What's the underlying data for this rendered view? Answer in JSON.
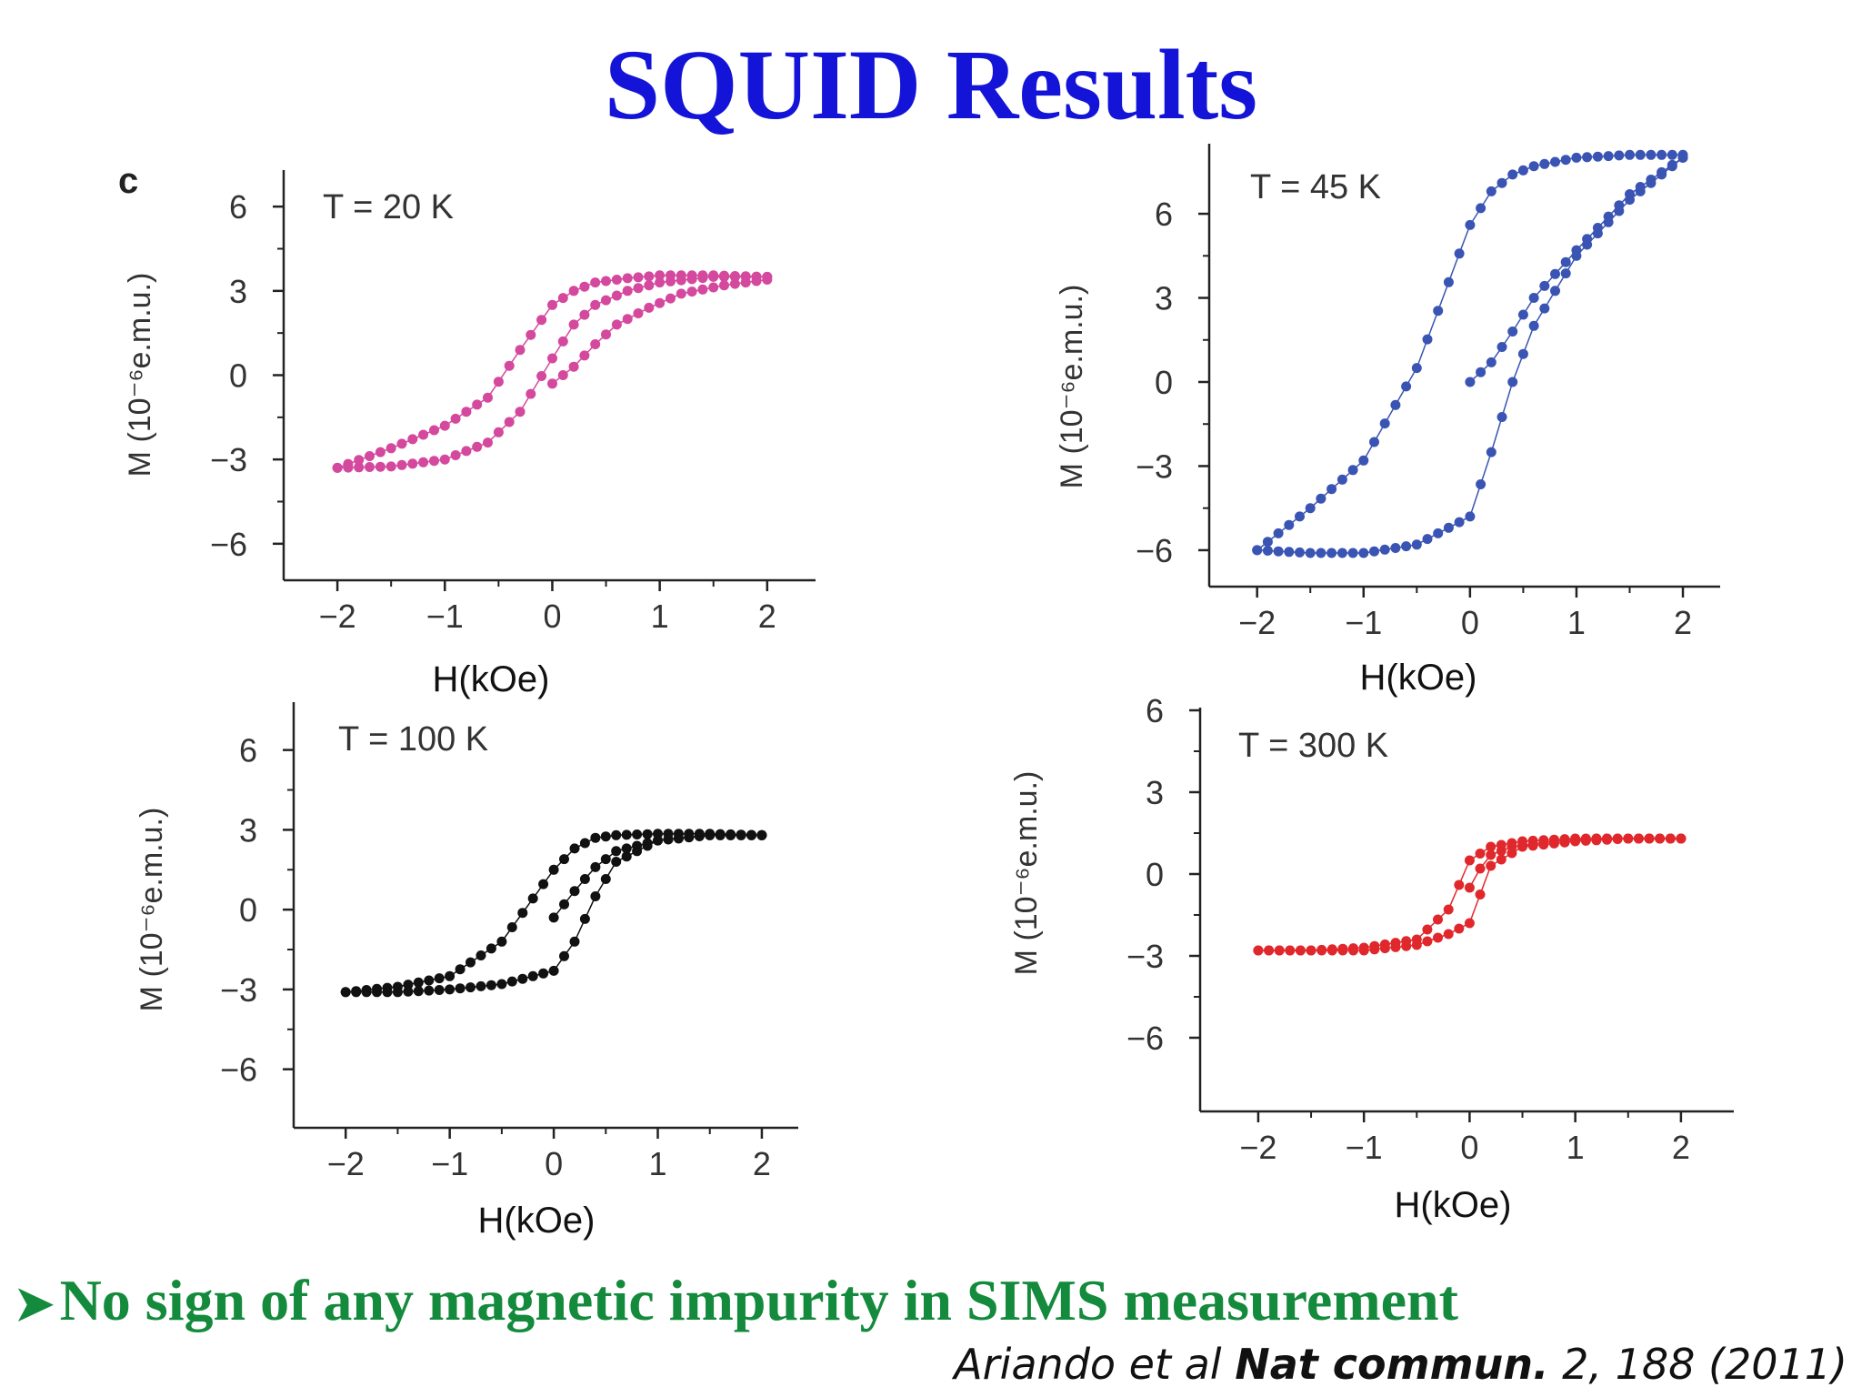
{
  "title": "SQUID Results",
  "title_color": "#1414d8",
  "bullet": {
    "text": "No sign of any magnetic impurity in SIMS measurement",
    "color": "#138a3c"
  },
  "citation": {
    "authors": "Ariando et al",
    "journal": "Nat commun.",
    "volume_page": "2,  188 (2011)"
  },
  "chart_data": [
    {
      "type": "scatter",
      "panel_label": "c",
      "annotation": "T = 20 K",
      "xlabel": "H(kOe)",
      "ylabel": "M (10⁻⁶e.m.u.)",
      "xlim": [
        -2.5,
        2.45
      ],
      "ylim": [
        -7.3,
        7.3
      ],
      "xticks": [
        -2,
        -1,
        0,
        1,
        2
      ],
      "yticks": [
        -6,
        -3,
        0,
        3,
        6
      ],
      "x_tick_labels": [
        "−2",
        "−1",
        "0",
        "1",
        "2"
      ],
      "y_tick_labels": [
        "−6",
        "−3",
        "0",
        "3",
        "6"
      ],
      "color": "#d4489e",
      "loop": {
        "x": [
          -2,
          -1.5,
          -1,
          -0.6,
          -0.3,
          0,
          0.2,
          0.4,
          0.7,
          1,
          1.5,
          2
        ],
        "lower_y": [
          -3.3,
          -3.25,
          -3.0,
          -2.4,
          -1.3,
          0.6,
          1.8,
          2.5,
          3.0,
          3.3,
          3.5,
          3.5
        ],
        "upper_y": [
          -3.3,
          -2.6,
          -1.8,
          -0.8,
          0.9,
          2.5,
          3.0,
          3.3,
          3.45,
          3.55,
          3.55,
          3.5
        ]
      },
      "virgin": {
        "x": [
          0,
          0.2,
          0.4,
          0.6,
          0.9,
          1.2,
          1.6,
          2.0
        ],
        "y": [
          -0.3,
          0.3,
          1.1,
          1.8,
          2.4,
          2.9,
          3.2,
          3.4
        ]
      }
    },
    {
      "type": "scatter",
      "annotation": "T = 45 K",
      "xlabel": "H(kOe)",
      "ylabel": "M (10⁻⁶e.m.u.)",
      "xlim": [
        -2.45,
        2.35
      ],
      "ylim": [
        -7.3,
        8.5
      ],
      "xticks": [
        -2,
        -1,
        0,
        1,
        2
      ],
      "yticks": [
        -6,
        -3,
        0,
        3,
        6
      ],
      "x_tick_labels": [
        "−2",
        "−1",
        "0",
        "1",
        "2"
      ],
      "y_tick_labels": [
        "−6",
        "−3",
        "0",
        "3",
        "6"
      ],
      "color": "#3a54b4",
      "loop": {
        "x": [
          -2,
          -1.5,
          -1,
          -0.5,
          0,
          0.2,
          0.4,
          0.6,
          1,
          1.5,
          2
        ],
        "lower_y": [
          -6,
          -6.1,
          -6.1,
          -5.8,
          -4.8,
          -2.5,
          0,
          2,
          4.5,
          6.5,
          8.0
        ],
        "upper_y": [
          -6,
          -4.5,
          -2.8,
          0.5,
          5.6,
          6.8,
          7.4,
          7.7,
          8.0,
          8.1,
          8.1
        ]
      },
      "virgin": {
        "x": [
          0,
          0.2,
          0.4,
          0.6,
          1.0,
          1.5,
          2.0
        ],
        "y": [
          0,
          0.7,
          1.8,
          3,
          4.7,
          6.7,
          8.0
        ]
      }
    },
    {
      "type": "scatter",
      "annotation": "T = 100 K",
      "xlabel": "H(kOe)",
      "ylabel": "M (10⁻⁶e.m.u.)",
      "xlim": [
        -2.5,
        2.35
      ],
      "ylim": [
        -8.2,
        7.8
      ],
      "xticks": [
        -2,
        -1,
        0,
        1,
        2
      ],
      "yticks": [
        -6,
        -3,
        0,
        3,
        6
      ],
      "x_tick_labels": [
        "−2",
        "−1",
        "0",
        "1",
        "2"
      ],
      "y_tick_labels": [
        "−6",
        "−3",
        "0",
        "3",
        "6"
      ],
      "color": "#111111",
      "loop": {
        "x": [
          -2,
          -1.5,
          -1,
          -0.5,
          0,
          0.2,
          0.4,
          0.6,
          1,
          1.5,
          2
        ],
        "lower_y": [
          -3.1,
          -3.1,
          -3.0,
          -2.8,
          -2.3,
          -1.2,
          0.5,
          1.8,
          2.6,
          2.8,
          2.8
        ],
        "upper_y": [
          -3.1,
          -2.9,
          -2.5,
          -1.2,
          1.5,
          2.3,
          2.7,
          2.8,
          2.85,
          2.85,
          2.8
        ]
      },
      "virgin": {
        "x": [
          0,
          0.2,
          0.4,
          0.6,
          1.0,
          1.5,
          2.0
        ],
        "y": [
          -0.3,
          0.7,
          1.6,
          2.2,
          2.6,
          2.8,
          2.8
        ]
      }
    },
    {
      "type": "scatter",
      "annotation": "T = 300 K",
      "xlabel": "H(kOe)",
      "ylabel": "M (10⁻⁶e.m.u.)",
      "xlim": [
        -2.55,
        2.5
      ],
      "ylim": [
        -8.7,
        6.1
      ],
      "xticks": [
        -2,
        -1,
        0,
        1,
        2
      ],
      "yticks": [
        -6,
        -3,
        0,
        3,
        6
      ],
      "x_tick_labels": [
        "−2",
        "−1",
        "0",
        "1",
        "2"
      ],
      "y_tick_labels": [
        "−6",
        "−3",
        "0",
        "3",
        "6"
      ],
      "color": "#e0282c",
      "loop": {
        "x": [
          -2,
          -1.5,
          -1,
          -0.5,
          -0.2,
          0,
          0.2,
          0.5,
          1,
          1.5,
          2
        ],
        "lower_y": [
          -2.8,
          -2.8,
          -2.8,
          -2.6,
          -2.2,
          -1.8,
          0.3,
          1.0,
          1.2,
          1.3,
          1.3
        ],
        "upper_y": [
          -2.8,
          -2.8,
          -2.7,
          -2.4,
          -1.3,
          0.5,
          1.0,
          1.2,
          1.3,
          1.3,
          1.3
        ]
      },
      "virgin": {
        "x": [
          0,
          0.1,
          0.2,
          0.4,
          0.8,
          1.2,
          2.0
        ],
        "y": [
          -0.5,
          0.2,
          0.7,
          1.0,
          1.2,
          1.3,
          1.3
        ]
      }
    }
  ]
}
